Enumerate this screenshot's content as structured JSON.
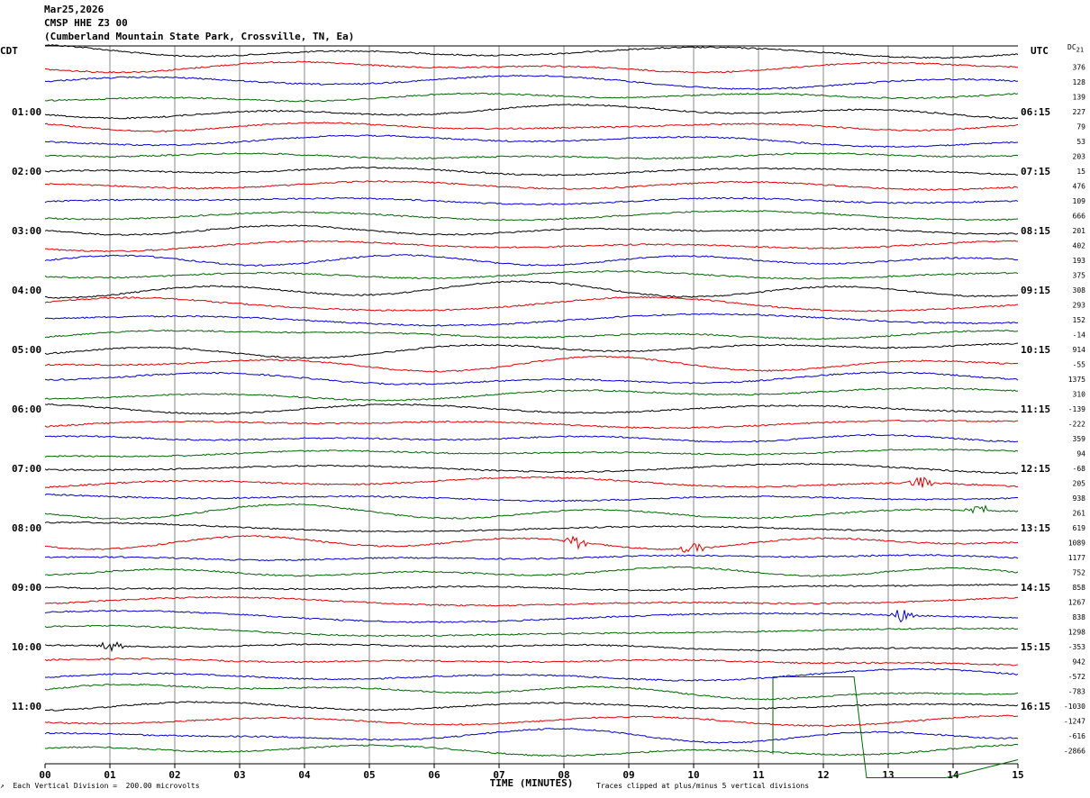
{
  "header": {
    "date": "Mar25,2026",
    "station": "CMSP HHE Z3 00",
    "location": "(Cumberland Mountain State Park, Crossville, TN, Ea)"
  },
  "left_axis_title": "CDT",
  "right_axis_title": "UTC",
  "dc_title": "DC",
  "dc_title_sub": "21",
  "chart_data": {
    "type": "line",
    "subtype": "helicorder",
    "xlabel": "TIME (MINUTES)",
    "xlim": [
      0,
      15
    ],
    "x_tick_labels": [
      "00",
      "01",
      "02",
      "03",
      "04",
      "05",
      "06",
      "07",
      "08",
      "09",
      "10",
      "11",
      "12",
      "13",
      "14",
      "15"
    ],
    "grid": "vertical lines every minute",
    "num_traces": 48,
    "minutes_per_trace": 15,
    "trace_colors": [
      "#000000",
      "#dd0000",
      "#0000cc",
      "#006600"
    ],
    "left_hour_labels": [
      "01:00",
      "02:00",
      "03:00",
      "04:00",
      "05:00",
      "06:00",
      "07:00",
      "08:00",
      "09:00",
      "10:00",
      "11:00"
    ],
    "right_hour_labels": [
      "06:15",
      "07:15",
      "08:15",
      "09:15",
      "10:15",
      "11:15",
      "12:15",
      "13:15",
      "14:15",
      "15:15",
      "16:15"
    ],
    "dc_offsets": [
      376,
      128,
      139,
      227,
      79,
      53,
      203,
      15,
      476,
      109,
      666,
      201,
      402,
      193,
      375,
      308,
      293,
      152,
      -14,
      914,
      -55,
      1375,
      310,
      -139,
      -222,
      359,
      94,
      -68,
      205,
      938,
      261,
      619,
      1089,
      1177,
      752,
      858,
      1267,
      838,
      1298,
      -353,
      942,
      -572,
      -783,
      -1030,
      -1247,
      -616,
      -2866
    ],
    "events": [
      {
        "trace": 29,
        "x_min": 13.5,
        "note": "small burst"
      },
      {
        "trace": 31,
        "x_min": 14.4,
        "note": "small burst"
      },
      {
        "trace": 33,
        "x_min": 8.2,
        "note": "small burst"
      },
      {
        "trace": 33,
        "x_min": 10.0,
        "note": "small burst"
      },
      {
        "trace": 38,
        "x_min": 13.2,
        "note": "small burst"
      },
      {
        "trace": 40,
        "x_min": 1.0,
        "note": "small burst"
      }
    ]
  },
  "footer": {
    "scale": "Each Vertical Division =  200.00 microvolts",
    "clip_note": "Traces clipped at plus/minus 5 vertical divisions"
  }
}
